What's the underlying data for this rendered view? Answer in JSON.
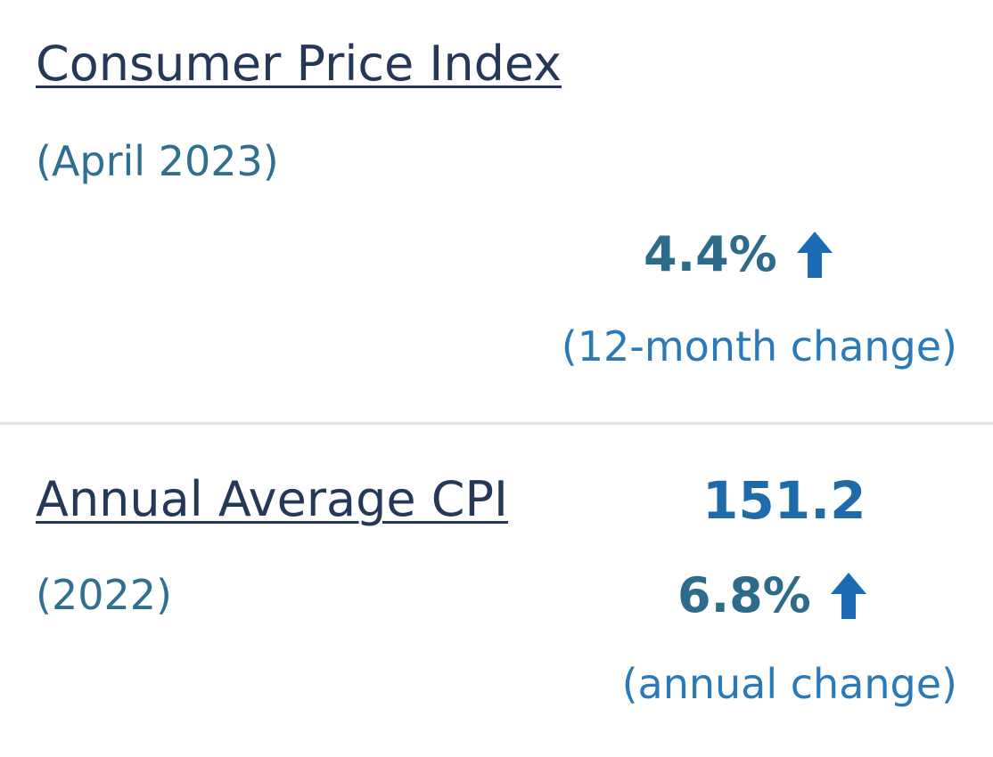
{
  "cpi": {
    "title": "Consumer Price Index",
    "period": "(April 2023)",
    "change_value": "4.4%",
    "change_icon": "arrow-up-icon",
    "change_caption": "(12-month change)"
  },
  "annual": {
    "title": "Annual Average CPI",
    "period": "(2022)",
    "index_value": "151.2",
    "change_value": "6.8%",
    "change_icon": "arrow-up-icon",
    "change_caption": "(annual change)"
  },
  "colors": {
    "title": "#253858",
    "period": "#2f6f8f",
    "change_value": "#2e6b8a",
    "caption": "#2a79b8",
    "index_value": "#1f6aa9",
    "arrow": "#1a6bb3",
    "divider": "#e3e3e3"
  }
}
